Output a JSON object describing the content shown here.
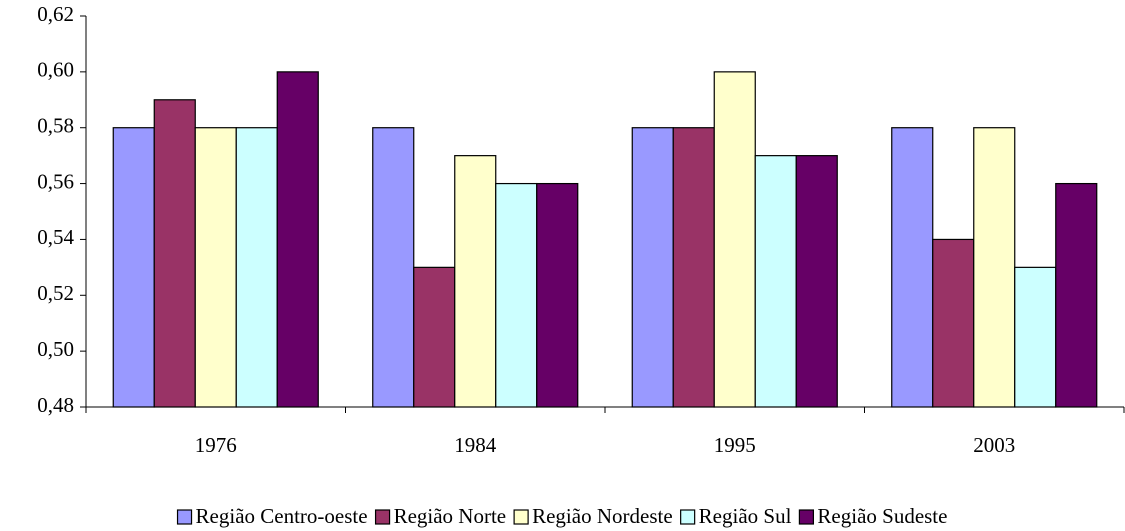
{
  "chart_data": {
    "type": "bar",
    "categories": [
      "1976",
      "1984",
      "1995",
      "2003"
    ],
    "series": [
      {
        "name": "Região Centro-oeste",
        "color": "#9999ff",
        "values": [
          0.58,
          0.58,
          0.58,
          0.58
        ]
      },
      {
        "name": "Região Norte",
        "color": "#993366",
        "values": [
          0.59,
          0.53,
          0.58,
          0.54
        ]
      },
      {
        "name": "Região Nordeste",
        "color": "#ffffcc",
        "values": [
          0.58,
          0.57,
          0.6,
          0.58
        ]
      },
      {
        "name": "Região Sul",
        "color": "#ccffff",
        "values": [
          0.58,
          0.56,
          0.57,
          0.53
        ]
      },
      {
        "name": "Região Sudeste",
        "color": "#660066",
        "values": [
          0.6,
          0.56,
          0.57,
          0.56
        ]
      }
    ],
    "ylim": [
      0.48,
      0.62
    ],
    "yticks": [
      {
        "value": 0.48,
        "label": "0,48"
      },
      {
        "value": 0.5,
        "label": "0,50"
      },
      {
        "value": 0.52,
        "label": "0,52"
      },
      {
        "value": 0.54,
        "label": "0,54"
      },
      {
        "value": 0.56,
        "label": "0,56"
      },
      {
        "value": 0.58,
        "label": "0,58"
      },
      {
        "value": 0.6,
        "label": "0,60"
      },
      {
        "value": 0.62,
        "label": "0,62"
      }
    ],
    "grid": false,
    "legend": "bottom"
  }
}
